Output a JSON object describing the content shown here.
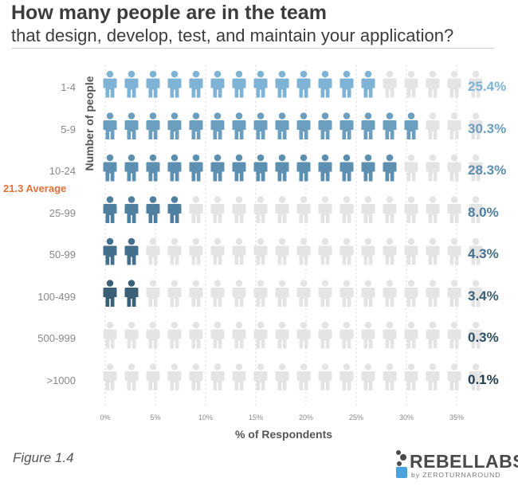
{
  "header": {
    "title": "How many people are in the team",
    "subtitle": "that design, develop, test, and maintain your application?"
  },
  "colors": {
    "empty": "#e4e4e4",
    "grid": "#d8d8d8",
    "average": "#e0713a",
    "rows": [
      "#7eb3d6",
      "#6c9ec0",
      "#5d8fb0",
      "#4f7f9e",
      "#446f8c",
      "#3a6078",
      "#2e4f63",
      "#243f4f"
    ]
  },
  "chart_data": {
    "type": "bar",
    "categories": [
      "1-4",
      "5-9",
      "10-24",
      "25-99",
      "50-99",
      "100-499",
      "500-999",
      ">1000"
    ],
    "values": [
      25.4,
      30.3,
      28.3,
      8.0,
      4.3,
      3.4,
      0.3,
      0.1
    ],
    "value_labels": [
      "25.4%",
      "30.3%",
      "28.3%",
      "8.0%",
      "4.3%",
      "3.4%",
      "0.3%",
      "0.1%"
    ],
    "icons_per_row": 18,
    "percent_per_icon": 2,
    "xlabel": "% of Respondents",
    "ylabel": "Number of people",
    "xlim": [
      0,
      35
    ],
    "xticks": [
      "0%",
      "5%",
      "10%",
      "15%",
      "20%",
      "25%",
      "30%",
      "35%"
    ],
    "grid": true,
    "annotation": "21.3 Average"
  },
  "footer": {
    "figure_label": "Figure 1.4",
    "logo_name": "REBELLABS",
    "logo_by": "by ZEROTURNAROUND"
  }
}
